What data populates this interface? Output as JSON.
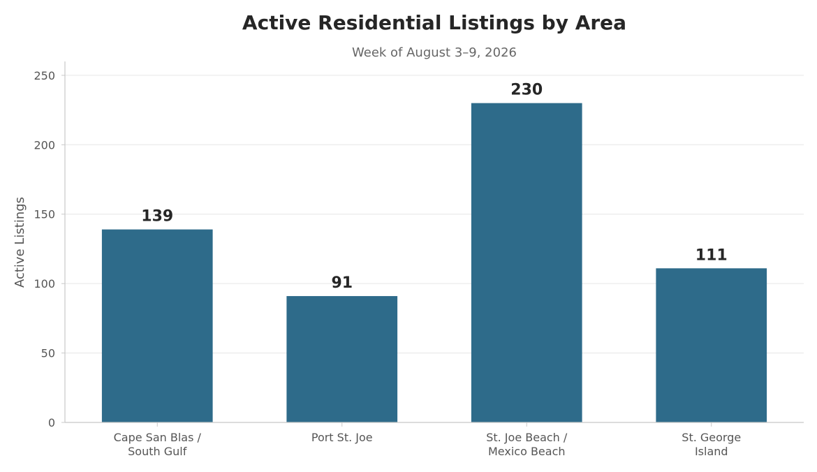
{
  "chart_data": {
    "type": "bar",
    "title": "Active Residential Listings by Area",
    "subtitle": "Week of August 3–9, 2026",
    "xlabel": "",
    "ylabel": "Active Listings",
    "categories": [
      [
        "Cape San Blas /",
        "South Gulf"
      ],
      [
        "Port St. Joe"
      ],
      [
        "St. Joe Beach /",
        "Mexico Beach"
      ],
      [
        "St. George",
        "Island"
      ]
    ],
    "values": [
      139,
      91,
      230,
      111
    ],
    "data_labels": [
      "139",
      "91",
      "230",
      "111"
    ],
    "yticks": [
      0,
      50,
      100,
      150,
      200,
      250
    ],
    "ylim": [
      0,
      260
    ],
    "grid": true,
    "legend": "none",
    "colors": {
      "bar": "#2e6b8a",
      "grid": "#e6e6e6",
      "axis": "#c8c8c8",
      "text": "#262626",
      "muted": "#555555"
    }
  }
}
